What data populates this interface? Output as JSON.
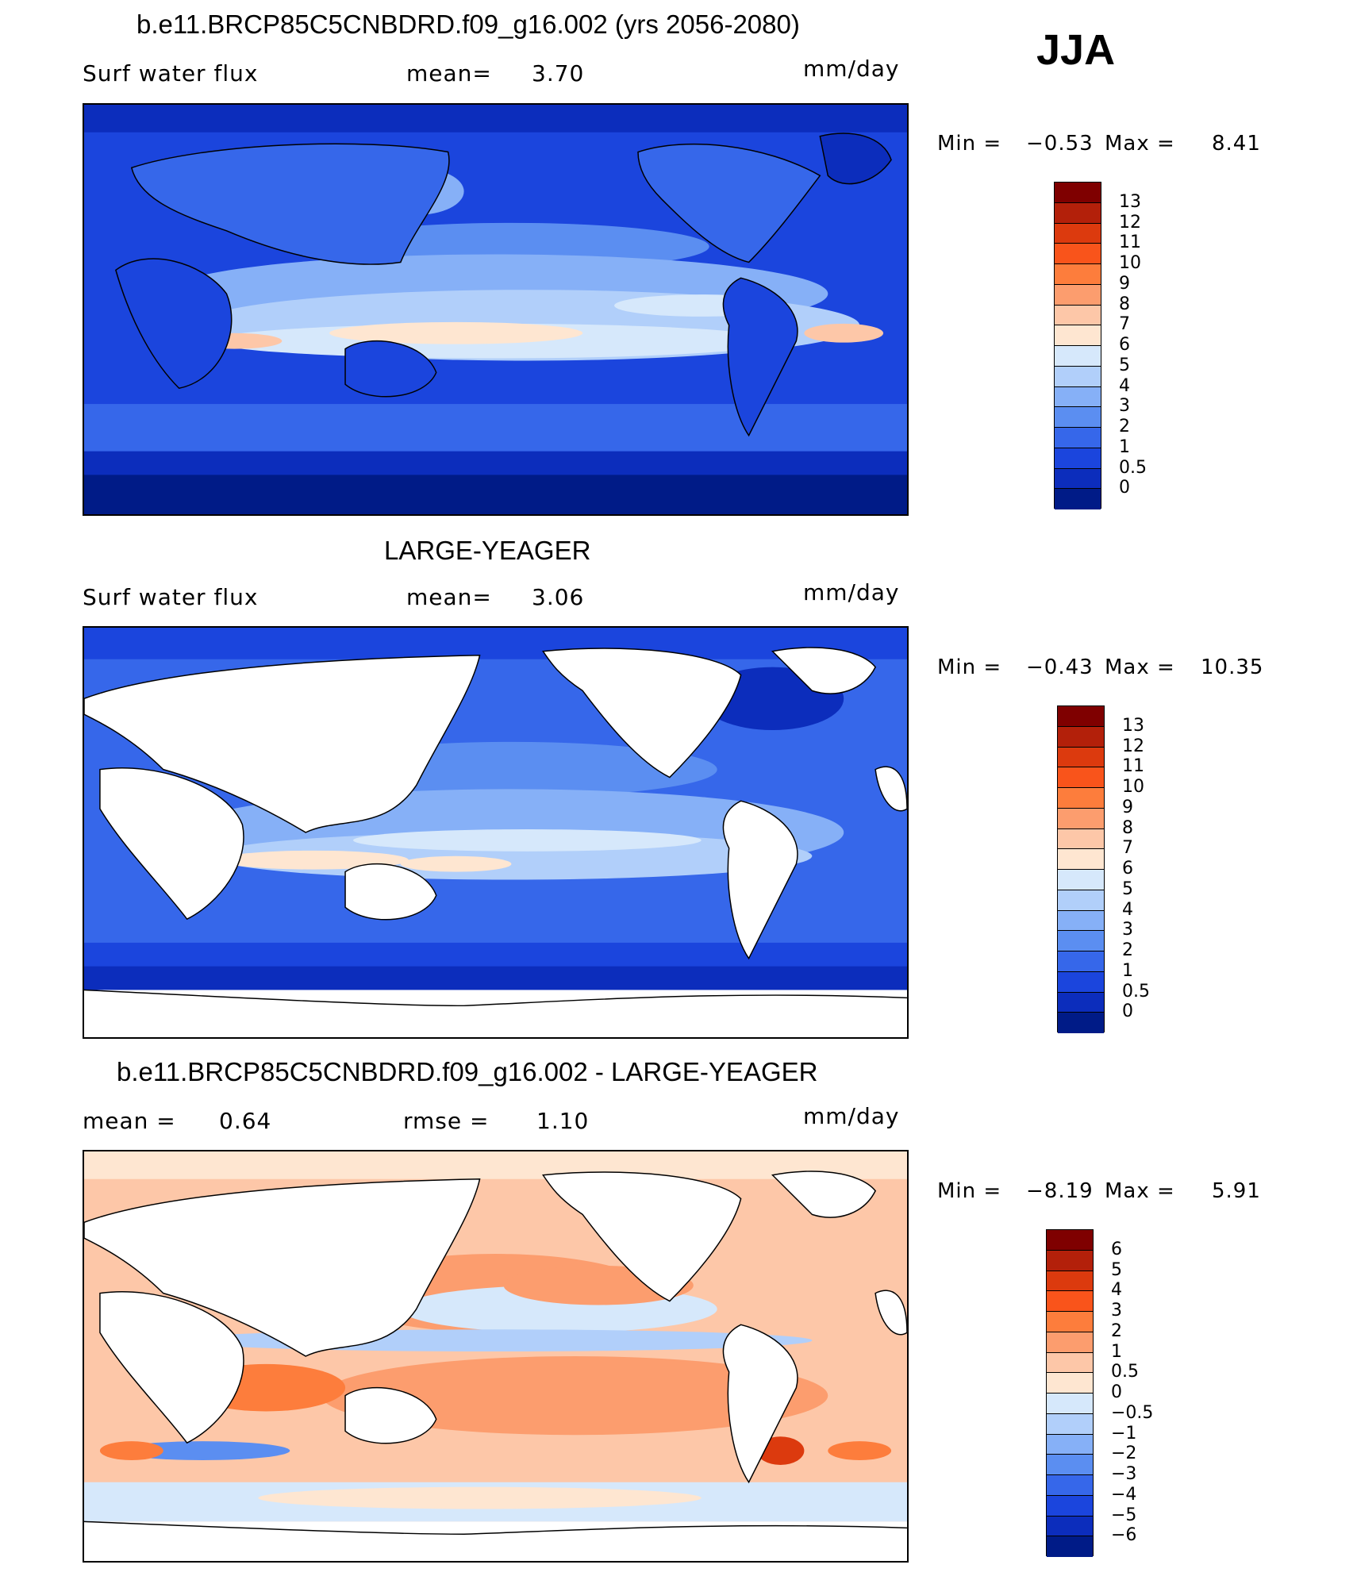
{
  "figure": {
    "season": "JJA"
  },
  "panels": [
    {
      "title": "b.e11.BRCP85C5CNBDRD.f09_g16.002 (yrs 2056-2080)",
      "left_label": "Surf water flux",
      "mid_label": "mean=",
      "mid_value": "3.70",
      "units": "mm/day",
      "min_label": "Min =",
      "min_value": "−0.53",
      "max_label": "Max =",
      "max_value": "8.41",
      "colorbar": {
        "levels": [
          "13",
          "12",
          "11",
          "10",
          "9",
          "8",
          "7",
          "6",
          "5",
          "4",
          "3",
          "2",
          "1",
          "0.5",
          "0"
        ],
        "colors": [
          "#7f0000",
          "#b3200a",
          "#dc3a0e",
          "#f9541b",
          "#fd7d3c",
          "#fc9d6e",
          "#fdc7a8",
          "#fee6d1",
          "#d6e8fb",
          "#b1cffa",
          "#86b0f7",
          "#5b8ef1",
          "#3667ea",
          "#1b45dd",
          "#0c2dbc",
          "#001b87"
        ]
      },
      "map_palette": "full"
    },
    {
      "title": "LARGE-YEAGER",
      "left_label": "Surf water flux",
      "mid_label": "mean=",
      "mid_value": "3.06",
      "units": "mm/day",
      "min_label": "Min =",
      "min_value": "−0.43",
      "max_label": "Max =",
      "max_value": "10.35",
      "colorbar": {
        "levels": [
          "13",
          "12",
          "11",
          "10",
          "9",
          "8",
          "7",
          "6",
          "5",
          "4",
          "3",
          "2",
          "1",
          "0.5",
          "0"
        ],
        "colors": [
          "#7f0000",
          "#b3200a",
          "#dc3a0e",
          "#f9541b",
          "#fd7d3c",
          "#fc9d6e",
          "#fdc7a8",
          "#fee6d1",
          "#d6e8fb",
          "#b1cffa",
          "#86b0f7",
          "#5b8ef1",
          "#3667ea",
          "#1b45dd",
          "#0c2dbc",
          "#001b87"
        ]
      },
      "map_palette": "ocean"
    },
    {
      "title": "b.e11.BRCP85C5CNBDRD.f09_g16.002 - LARGE-YEAGER",
      "left_label": "mean =",
      "left_value": "0.64",
      "mid_label": "rmse =",
      "mid_value": "1.10",
      "units": "mm/day",
      "min_label": "Min =",
      "min_value": "−8.19",
      "max_label": "Max =",
      "max_value": "5.91",
      "colorbar": {
        "levels": [
          "6",
          "5",
          "4",
          "3",
          "2",
          "1",
          "0.5",
          "0",
          "−0.5",
          "−1",
          "−2",
          "−3",
          "−4",
          "−5",
          "−6"
        ],
        "colors": [
          "#7f0000",
          "#b3200a",
          "#dc3a0e",
          "#f9541b",
          "#fd7d3c",
          "#fc9d6e",
          "#fdc7a8",
          "#fee6d1",
          "#d6e8fb",
          "#b1cffa",
          "#86b0f7",
          "#5b8ef1",
          "#3667ea",
          "#1b45dd",
          "#0c2dbc",
          "#001b87"
        ]
      },
      "map_palette": "diff"
    }
  ]
}
